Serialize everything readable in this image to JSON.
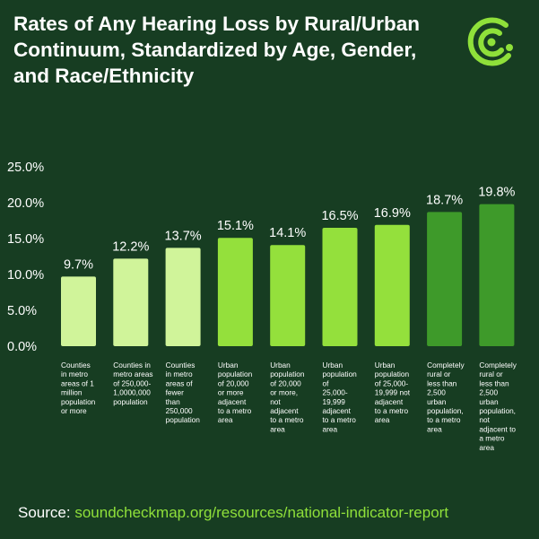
{
  "title": "Rates of Any Hearing Loss by Rural/Urban Continuum, Standardized by Age, Gender, and Race/Ethnicity",
  "source": {
    "label": "Source:",
    "url": "soundcheckmap.org/resources/national-indicator-report"
  },
  "logo": {
    "icon": "soundcheck-logo-icon",
    "color": "#8fe03a"
  },
  "colors": {
    "background": "#173d22",
    "light_green": "#d0f49a",
    "bright_green": "#94e03c",
    "dark_green": "#3e9a2a",
    "text": "#ffffff"
  },
  "chart_data": {
    "type": "bar",
    "title": "Rates of Any Hearing Loss by Rural/Urban Continuum, Standardized by Age, Gender, and Race/Ethnicity",
    "xlabel": "",
    "ylabel": "",
    "ylim": [
      0,
      25
    ],
    "yticks": [
      "25.0%",
      "20.0%",
      "15.0%",
      "10.0%",
      "5.0%",
      "0.0%"
    ],
    "ytick_values": [
      25,
      20,
      15,
      10,
      5,
      0
    ],
    "grid": false,
    "categories": [
      [
        "Counties",
        "in metro",
        "areas of 1",
        "million",
        "population",
        "or more"
      ],
      [
        "Counties in",
        "metro areas",
        "of 250,000-",
        "1,0000,000",
        "population"
      ],
      [
        "Counties",
        "in metro",
        "areas of",
        "fewer",
        "than",
        "250,000",
        "population"
      ],
      [
        "Urban",
        "population",
        "of 20,000",
        "or more",
        "adjacent",
        "to a metro",
        "area"
      ],
      [
        "Urban",
        "population",
        "of 20,000",
        "or more,",
        "not",
        "adjacent",
        "to a metro",
        "area"
      ],
      [
        "Urban",
        "population",
        "of",
        "25,000-",
        "19,999",
        "adjacent",
        "to a metro",
        "area"
      ],
      [
        "Urban",
        "population",
        "of 25,000-",
        "19,999 not",
        "adjacent",
        "to a metro",
        "area"
      ],
      [
        "Completely",
        "rural or",
        "less than",
        "2,500",
        "urban",
        "population,",
        "to a metro",
        "area"
      ],
      [
        "Completely",
        "rural or",
        "less than",
        "2,500",
        "urban",
        "population,",
        "not",
        "adjacent to",
        "a metro",
        "area"
      ]
    ],
    "values": [
      9.7,
      12.2,
      13.7,
      15.1,
      14.1,
      16.5,
      16.9,
      18.7,
      19.8
    ],
    "value_labels": [
      "9.7%",
      "12.2%",
      "13.7%",
      "15.1%",
      "14.1%",
      "16.5%",
      "16.9%",
      "18.7%",
      "19.8%"
    ],
    "bar_colors": [
      "#d0f49a",
      "#d0f49a",
      "#d0f49a",
      "#94e03c",
      "#94e03c",
      "#94e03c",
      "#94e03c",
      "#3e9a2a",
      "#3e9a2a"
    ]
  }
}
